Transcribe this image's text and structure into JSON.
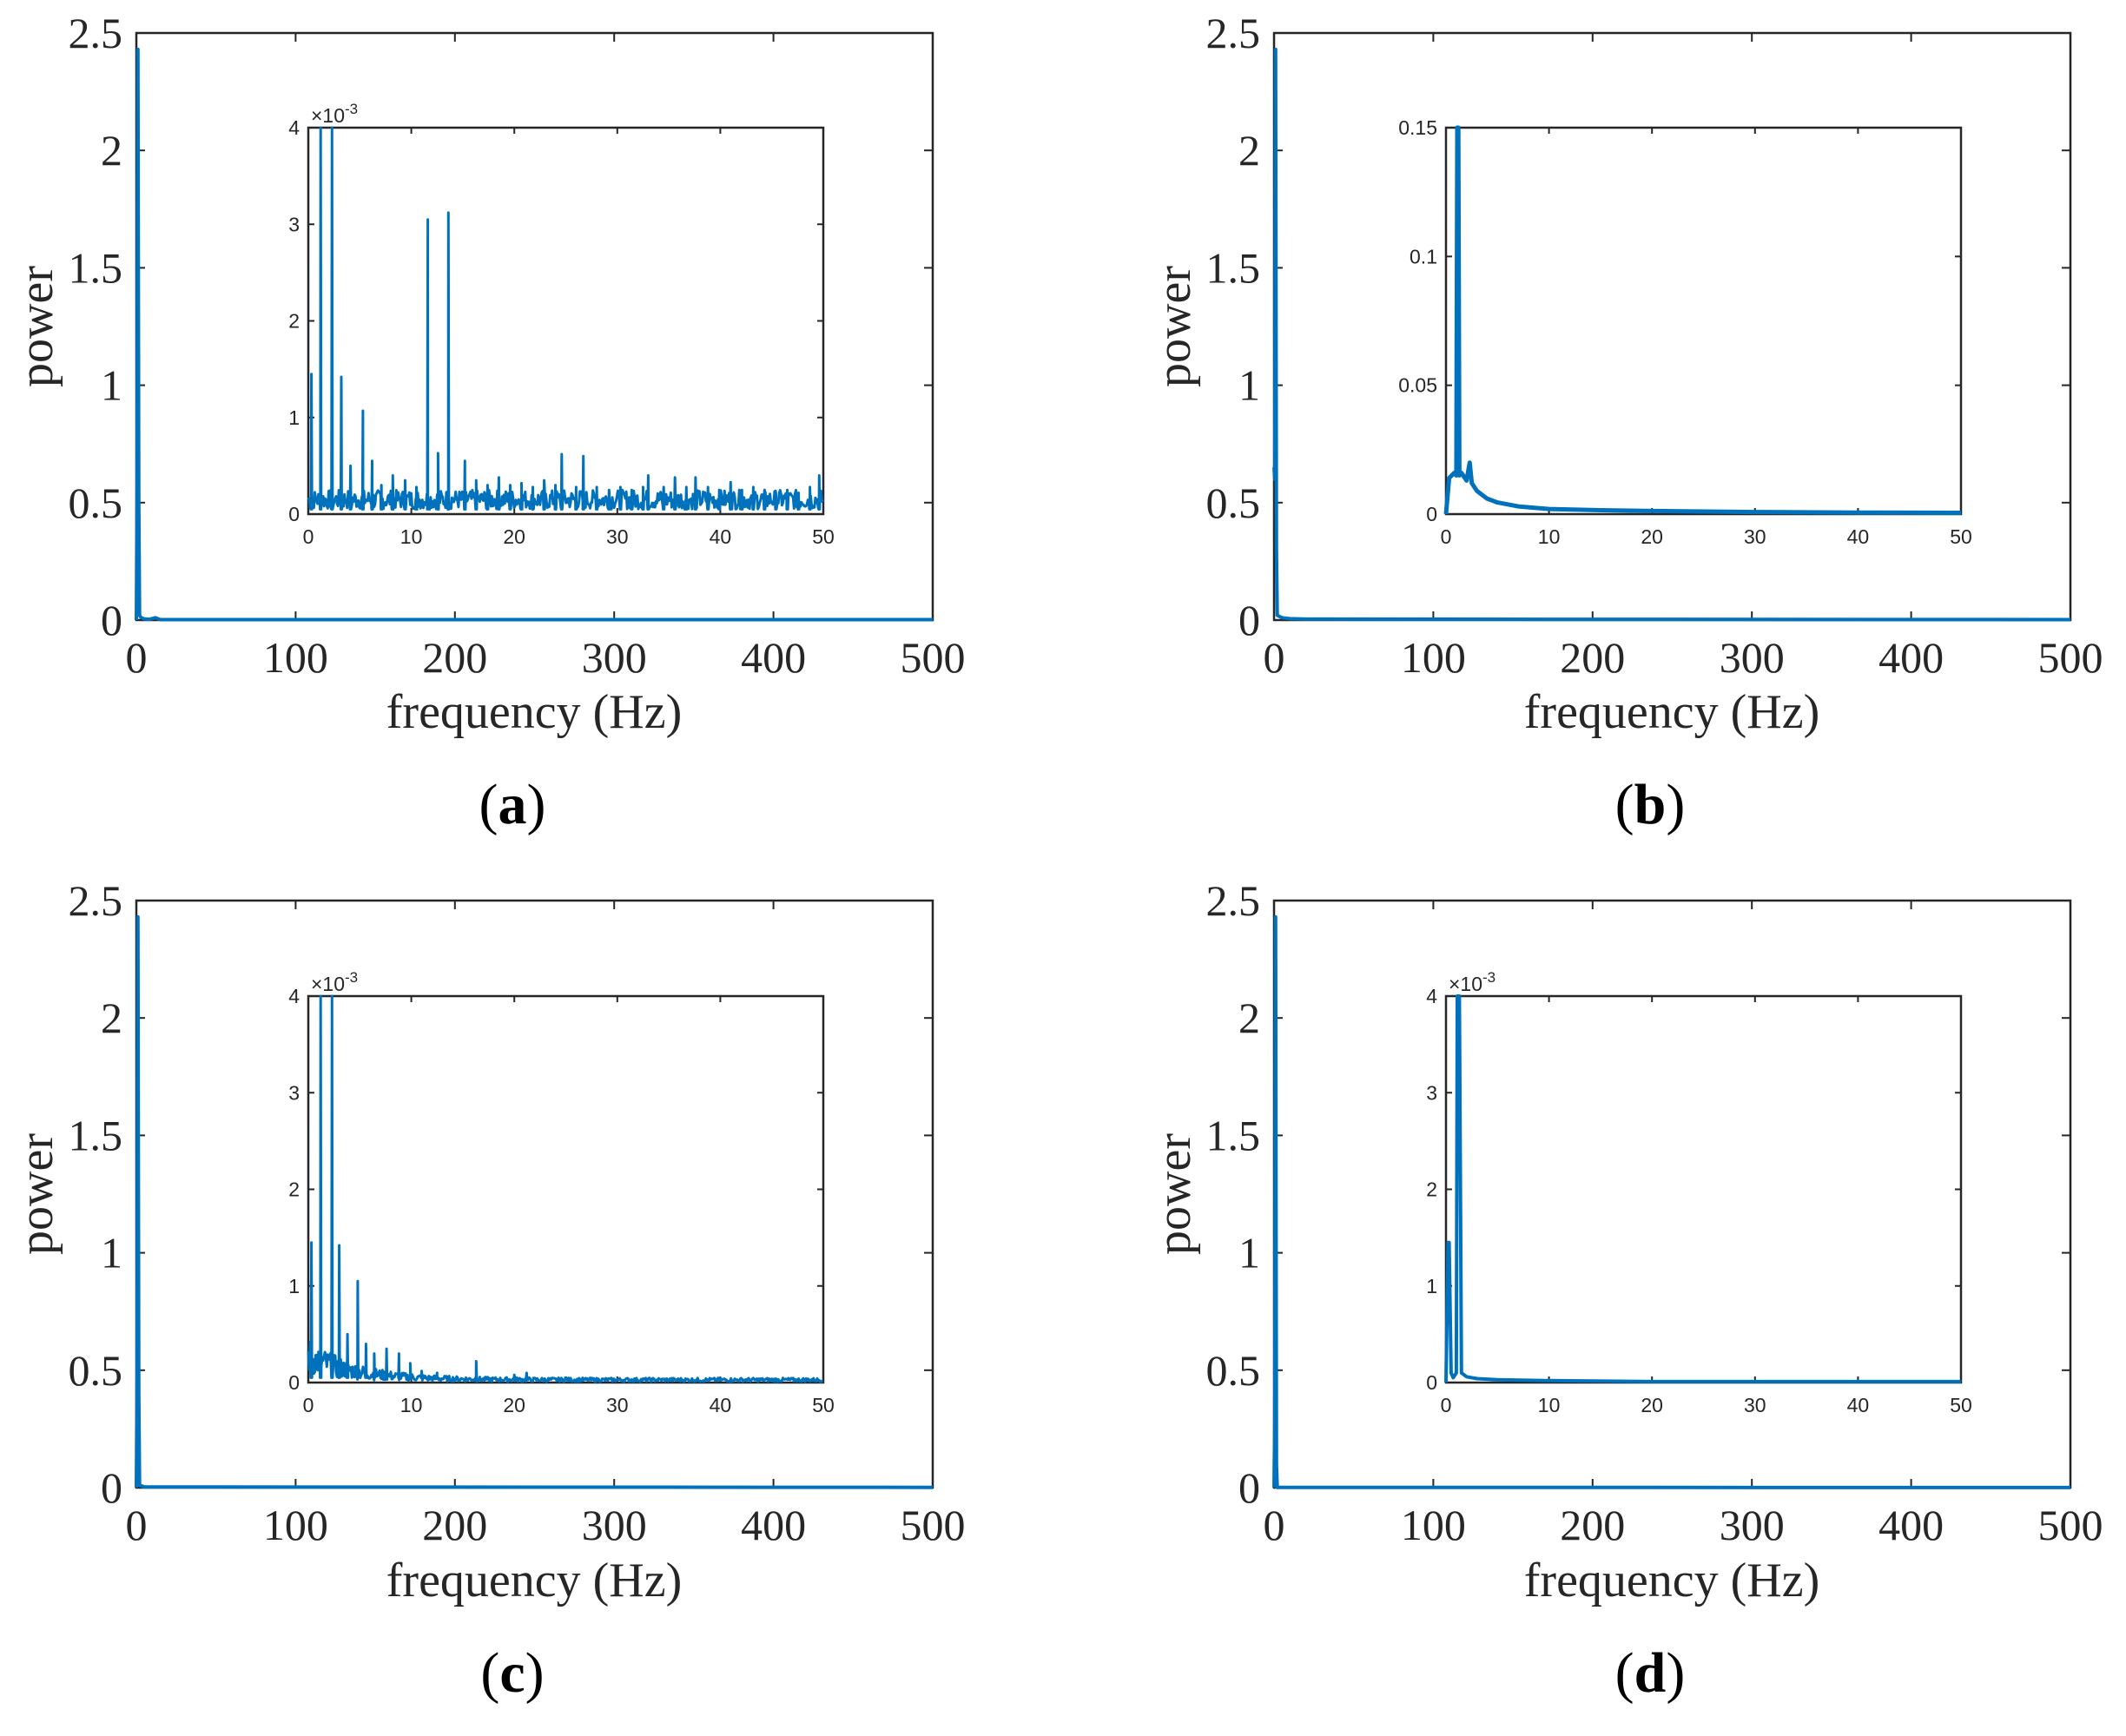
{
  "series_color": "#0072BD",
  "chart_data": [
    {
      "type": "line",
      "panel": "a",
      "xlabel": "frequency (Hz)",
      "ylabel": "power",
      "xlim": [
        0,
        500
      ],
      "ylim": [
        0,
        2.5
      ],
      "xticks": [
        "0",
        "100",
        "200",
        "300",
        "400",
        "500"
      ],
      "yticks": [
        "0",
        "0.5",
        "1",
        "1.5",
        "2",
        "2.5"
      ],
      "peak": {
        "x": 1,
        "y": 2.43
      },
      "x": [
        0,
        0.5,
        1,
        1.5,
        2,
        3,
        5,
        8,
        12,
        15,
        20,
        500
      ],
      "y": [
        0.0,
        0.6,
        2.43,
        0.5,
        0.02,
        0.01,
        0.005,
        0.003,
        0.01,
        0.002,
        0.002,
        0.002
      ],
      "inset": {
        "xlim": [
          0,
          50
        ],
        "ylim": [
          0,
          0.004
        ],
        "xticks": [
          "0",
          "10",
          "20",
          "30",
          "40",
          "50"
        ],
        "yticks": [
          "0",
          "1",
          "2",
          "3",
          "4"
        ],
        "exponent": "-3",
        "peaks": [
          {
            "x": 0.3,
            "y": 0.00145
          },
          {
            "x": 1.2,
            "y": 0.0045
          },
          {
            "x": 2.3,
            "y": 0.0045
          },
          {
            "x": 3.2,
            "y": 0.00142
          },
          {
            "x": 4.1,
            "y": 0.0005
          },
          {
            "x": 5.3,
            "y": 0.00107
          },
          {
            "x": 6.2,
            "y": 0.00055
          },
          {
            "x": 7.1,
            "y": 0.0003
          },
          {
            "x": 8.2,
            "y": 0.0004
          },
          {
            "x": 9.4,
            "y": 0.00035
          },
          {
            "x": 10.5,
            "y": 0.00028
          },
          {
            "x": 11.6,
            "y": 0.00305
          },
          {
            "x": 12.6,
            "y": 0.00063
          },
          {
            "x": 13.6,
            "y": 0.00312
          },
          {
            "x": 15.2,
            "y": 0.00055
          },
          {
            "x": 16.3,
            "y": 0.00035
          },
          {
            "x": 17.4,
            "y": 0.0003
          },
          {
            "x": 18.5,
            "y": 0.00038
          },
          {
            "x": 19.6,
            "y": 0.0003
          },
          {
            "x": 20.7,
            "y": 0.00032
          },
          {
            "x": 21.8,
            "y": 0.00028
          },
          {
            "x": 22.9,
            "y": 0.00035
          },
          {
            "x": 24.0,
            "y": 0.0003
          },
          {
            "x": 24.6,
            "y": 0.00062
          },
          {
            "x": 26.0,
            "y": 0.00028
          },
          {
            "x": 26.7,
            "y": 0.0006
          },
          {
            "x": 28.0,
            "y": 0.00028
          },
          {
            "x": 29.2,
            "y": 0.00025
          },
          {
            "x": 30.3,
            "y": 0.00028
          },
          {
            "x": 31.4,
            "y": 0.00025
          },
          {
            "x": 32.5,
            "y": 0.00028
          },
          {
            "x": 33.0,
            "y": 0.0004
          },
          {
            "x": 34.5,
            "y": 0.00028
          },
          {
            "x": 35.6,
            "y": 0.00038
          },
          {
            "x": 36.7,
            "y": 0.00028
          },
          {
            "x": 37.6,
            "y": 0.00038
          },
          {
            "x": 38.8,
            "y": 0.00028
          },
          {
            "x": 39.9,
            "y": 0.00025
          },
          {
            "x": 41.0,
            "y": 0.00033
          },
          {
            "x": 42.1,
            "y": 0.00025
          },
          {
            "x": 43.2,
            "y": 0.00028
          },
          {
            "x": 44.3,
            "y": 0.00025
          },
          {
            "x": 45.4,
            "y": 0.00022
          },
          {
            "x": 46.5,
            "y": 0.00025
          },
          {
            "x": 47.6,
            "y": 0.00022
          },
          {
            "x": 48.7,
            "y": 0.00028
          },
          {
            "x": 49.6,
            "y": 0.0004
          }
        ],
        "noise_level": 0.0002
      }
    },
    {
      "type": "line",
      "panel": "b",
      "xlabel": "frequency (Hz)",
      "ylabel": "power",
      "xlim": [
        0,
        500
      ],
      "ylim": [
        0,
        2.5
      ],
      "xticks": [
        "0",
        "100",
        "200",
        "300",
        "400",
        "500"
      ],
      "yticks": [
        "0",
        "0.5",
        "1",
        "1.5",
        "2",
        "2.5"
      ],
      "peak": {
        "x": 1,
        "y": 2.43
      },
      "x": [
        0,
        0.5,
        1,
        1.5,
        2,
        5,
        10,
        20,
        500
      ],
      "y": [
        0.65,
        0.6,
        2.43,
        0.3,
        0.02,
        0.01,
        0.006,
        0.004,
        0.002
      ],
      "inset": {
        "xlim": [
          0,
          50
        ],
        "ylim": [
          0,
          0.15
        ],
        "xticks": [
          "0",
          "10",
          "20",
          "30",
          "40",
          "50"
        ],
        "yticks": [
          "0",
          "0.05",
          "0.1",
          "0.15"
        ],
        "x": [
          0,
          0.3,
          0.8,
          1.0,
          1.1,
          1.2,
          1.3,
          1.5,
          2.0,
          2.3,
          2.5,
          3.0,
          4,
          5,
          7,
          10,
          15,
          20,
          30,
          40,
          50
        ],
        "y": [
          0.0,
          0.014,
          0.016,
          0.015,
          0.16,
          0.16,
          0.015,
          0.016,
          0.013,
          0.02,
          0.012,
          0.009,
          0.006,
          0.0045,
          0.003,
          0.002,
          0.0015,
          0.0012,
          0.0008,
          0.0006,
          0.0005
        ]
      }
    },
    {
      "type": "line",
      "panel": "c",
      "xlabel": "frequency (Hz)",
      "ylabel": "power",
      "xlim": [
        0,
        500
      ],
      "ylim": [
        0,
        2.5
      ],
      "xticks": [
        "0",
        "100",
        "200",
        "300",
        "400",
        "500"
      ],
      "yticks": [
        "0",
        "0.5",
        "1",
        "1.5",
        "2",
        "2.5"
      ],
      "peak": {
        "x": 1,
        "y": 2.43
      },
      "x": [
        0,
        0.5,
        1,
        1.5,
        2,
        5,
        500
      ],
      "y": [
        0.0,
        0.5,
        2.43,
        0.4,
        0.01,
        0.003,
        0.001
      ],
      "inset": {
        "xlim": [
          0,
          50
        ],
        "ylim": [
          0,
          0.004
        ],
        "xticks": [
          "0",
          "10",
          "20",
          "30",
          "40",
          "50"
        ],
        "yticks": [
          "0",
          "1",
          "2",
          "3",
          "4"
        ],
        "exponent": "-3",
        "peaks": [
          {
            "x": 0.3,
            "y": 0.00145
          },
          {
            "x": 1.2,
            "y": 0.0045
          },
          {
            "x": 2.3,
            "y": 0.0045
          },
          {
            "x": 3.0,
            "y": 0.00142
          },
          {
            "x": 3.8,
            "y": 0.0005
          },
          {
            "x": 4.8,
            "y": 0.00105
          },
          {
            "x": 5.6,
            "y": 0.0004
          },
          {
            "x": 6.4,
            "y": 0.0003
          },
          {
            "x": 7.6,
            "y": 0.00035
          },
          {
            "x": 8.8,
            "y": 0.0003
          },
          {
            "x": 9.9,
            "y": 0.0002
          },
          {
            "x": 11.0,
            "y": 0.00012
          },
          {
            "x": 12.5,
            "y": 0.0001
          },
          {
            "x": 16.3,
            "y": 0.00022
          },
          {
            "x": 20.0,
            "y": 8e-05
          },
          {
            "x": 21.2,
            "y": 0.0001
          },
          {
            "x": 25.0,
            "y": 5e-05
          }
        ],
        "noise_decay": true
      }
    },
    {
      "type": "line",
      "panel": "d",
      "xlabel": "frequency (Hz)",
      "ylabel": "power",
      "xlim": [
        0,
        500
      ],
      "ylim": [
        0,
        2.5
      ],
      "xticks": [
        "0",
        "100",
        "200",
        "300",
        "400",
        "500"
      ],
      "yticks": [
        "0",
        "0.5",
        "1",
        "1.5",
        "2",
        "2.5"
      ],
      "peak": {
        "x": 1,
        "y": 2.43
      },
      "x": [
        0,
        0.5,
        1,
        1.5,
        2,
        500
      ],
      "y": [
        0.0,
        0.3,
        2.43,
        0.1,
        0.001,
        0.0005
      ],
      "inset": {
        "xlim": [
          0,
          50
        ],
        "ylim": [
          0,
          0.004
        ],
        "xticks": [
          "0",
          "10",
          "20",
          "30",
          "40",
          "50"
        ],
        "yticks": [
          "0",
          "1",
          "2",
          "3",
          "4"
        ],
        "exponent": "-3",
        "x": [
          0,
          0.2,
          0.3,
          0.5,
          0.7,
          1.0,
          1.1,
          1.3,
          1.5,
          2,
          3,
          5,
          10,
          20,
          50
        ],
        "y": [
          0.0,
          0.00145,
          0.00145,
          0.0001,
          5e-05,
          0.0001,
          0.0045,
          0.0045,
          0.0001,
          6e-05,
          4e-05,
          3e-05,
          2e-05,
          1e-05,
          1e-05
        ]
      }
    }
  ],
  "panels": [
    {
      "label_open": "(",
      "label_letter": "a",
      "label_close": ")"
    },
    {
      "label_open": "(",
      "label_letter": "b",
      "label_close": ")"
    },
    {
      "label_open": "(",
      "label_letter": "c",
      "label_close": ")"
    },
    {
      "label_open": "(",
      "label_letter": "d",
      "label_close": ")"
    }
  ]
}
